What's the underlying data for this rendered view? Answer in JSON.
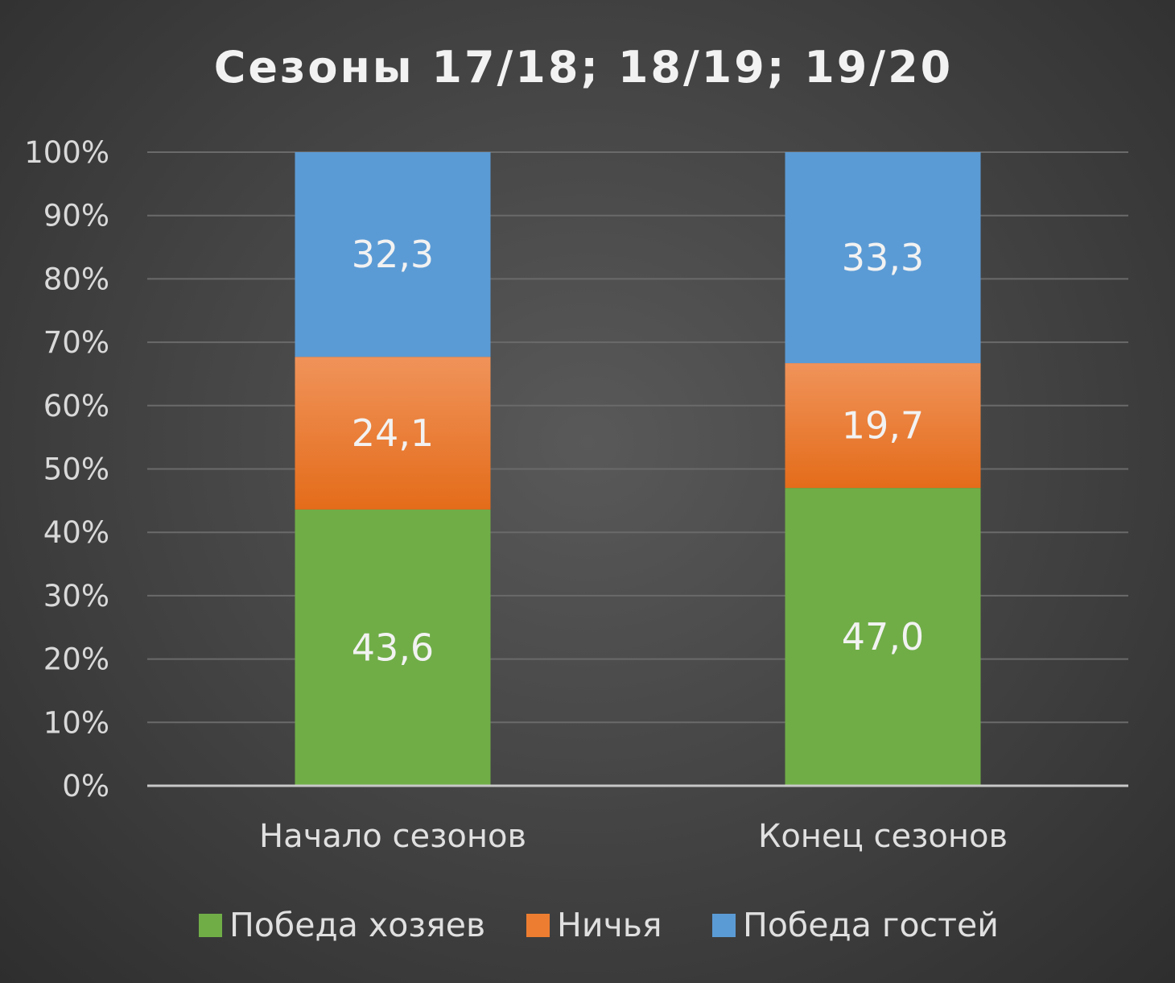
{
  "chart_data": {
    "type": "bar",
    "stacked": true,
    "percent_stacked": true,
    "title": "Сезоны 17/18; 18/19; 19/20",
    "categories": [
      "Начало сезонов",
      "Конец сезонов"
    ],
    "series": [
      {
        "name": "Победа хозяев",
        "values": [
          43.6,
          47.0
        ],
        "labels": [
          "43,6",
          "47,0"
        ],
        "color": "#70ad47"
      },
      {
        "name": "Ничья",
        "values": [
          24.1,
          19.7
        ],
        "labels": [
          "24,1",
          "19,7"
        ],
        "color": "#ed7d31"
      },
      {
        "name": "Победа гостей",
        "values": [
          32.3,
          33.3
        ],
        "labels": [
          "32,3",
          "33,3"
        ],
        "color": "#5b9bd5"
      }
    ],
    "y_ticks": [
      "0%",
      "10%",
      "20%",
      "30%",
      "40%",
      "50%",
      "60%",
      "70%",
      "80%",
      "90%",
      "100%"
    ],
    "ylim": [
      0,
      100
    ],
    "grid": true,
    "legend": "bottom"
  },
  "colors": {
    "background": "#464646",
    "gridline": "#6a6a6a",
    "axis_line": "#c8c8c8"
  }
}
